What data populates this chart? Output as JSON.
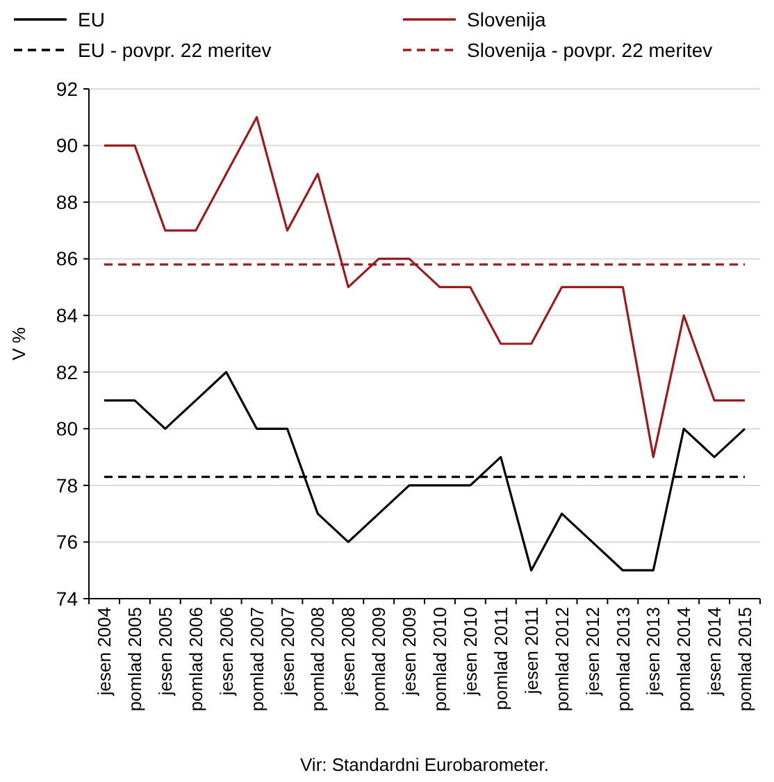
{
  "chart_data": {
    "type": "line",
    "ylabel": "V %",
    "annotations": [
      "Vir: Standardni Eurobarometer."
    ],
    "categories": [
      "jesen 2004",
      "pomlad 2005",
      "jesen 2005",
      "pomlad 2006",
      "jesen 2006",
      "pomlad 2007",
      "jesen 2007",
      "pomlad 2008",
      "jesen 2008",
      "pomlad 2009",
      "jesen 2009",
      "pomlad 2010",
      "jesen 2010",
      "pomlad 2011",
      "jesen 2011",
      "pomlad 2012",
      "jesen 2012",
      "pomlad 2013",
      "jesen 2013",
      "pomlad 2014",
      "jesen 2014",
      "pomlad 2015"
    ],
    "series": [
      {
        "name": "EU",
        "color": "#000000",
        "line_style": "solid",
        "values": [
          81,
          81,
          80,
          81,
          82,
          80,
          80,
          77,
          76,
          77,
          78,
          78,
          78,
          79,
          75,
          77,
          76,
          75,
          75,
          80,
          79,
          80
        ]
      },
      {
        "name": "Slovenija",
        "color": "#9b1c1f",
        "line_style": "solid",
        "values": [
          90,
          90,
          87,
          87,
          89,
          91,
          87,
          89,
          85,
          86,
          86,
          85,
          85,
          83,
          83,
          85,
          85,
          85,
          79,
          84,
          81,
          81
        ]
      },
      {
        "name": "EU - povpr. 22 meritev",
        "color": "#000000",
        "line_style": "dashed",
        "values": [
          78.3,
          78.3,
          78.3,
          78.3,
          78.3,
          78.3,
          78.3,
          78.3,
          78.3,
          78.3,
          78.3,
          78.3,
          78.3,
          78.3,
          78.3,
          78.3,
          78.3,
          78.3,
          78.3,
          78.3,
          78.3,
          78.3
        ]
      },
      {
        "name": "Slovenija - povpr. 22 meritev",
        "color": "#9b1c1f",
        "line_style": "dashed",
        "values": [
          85.8,
          85.8,
          85.8,
          85.8,
          85.8,
          85.8,
          85.8,
          85.8,
          85.8,
          85.8,
          85.8,
          85.8,
          85.8,
          85.8,
          85.8,
          85.8,
          85.8,
          85.8,
          85.8,
          85.8,
          85.8,
          85.8
        ]
      }
    ],
    "ylim": [
      74,
      92
    ],
    "yticks": [
      74,
      76,
      78,
      80,
      82,
      84,
      86,
      88,
      90,
      92
    ],
    "grid": "y",
    "legend": "top",
    "marker": "none"
  }
}
